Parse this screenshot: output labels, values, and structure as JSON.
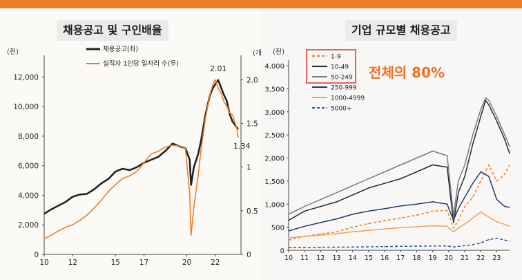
{
  "chart_data": [
    {
      "type": "line",
      "title": "채용공고 및 구인배율",
      "y_unit_left": "(천)",
      "y_unit_right": "(개)",
      "ylim_left": [
        0,
        13000
      ],
      "ylim_right": [
        0,
        2.2
      ],
      "x_ticks": [
        "10",
        "12",
        "15",
        "17",
        "20",
        "22"
      ],
      "y_ticks_left": [
        "0",
        "2,000",
        "4,000",
        "6,000",
        "8,000",
        "10,000",
        "12,000"
      ],
      "y_ticks_right": [
        "0",
        "0.5",
        "1",
        "1.5",
        "2.0"
      ],
      "legend_position": "top-left",
      "series": [
        {
          "name": "채용공고(좌)",
          "axis": "left",
          "color": "#222222",
          "x": [
            2010.0,
            2010.5,
            2011.0,
            2011.5,
            2012.0,
            2012.5,
            2013.0,
            2013.5,
            2014.0,
            2014.5,
            2015.0,
            2015.5,
            2016.0,
            2016.5,
            2017.0,
            2017.5,
            2018.0,
            2018.5,
            2019.0,
            2019.5,
            2019.9,
            2020.2,
            2020.3,
            2020.5,
            2020.8,
            2021.0,
            2021.3,
            2021.6,
            2021.8,
            2022.0,
            2022.2,
            2022.4,
            2022.6,
            2022.8,
            2023.0,
            2023.2,
            2023.5,
            2023.6
          ],
          "values": [
            2750,
            3050,
            3300,
            3550,
            3900,
            4050,
            4100,
            4400,
            4800,
            5100,
            5600,
            5800,
            5700,
            5900,
            6200,
            6400,
            6600,
            7000,
            7500,
            7300,
            7200,
            6400,
            4700,
            5900,
            6800,
            7700,
            9400,
            10700,
            11200,
            11500,
            11800,
            11300,
            10800,
            10400,
            9500,
            9000,
            8600,
            8500
          ]
        },
        {
          "name": "실직자 1인당 일자리 수(우)",
          "axis": "right",
          "color": "#f07d23",
          "x": [
            2010.0,
            2010.5,
            2011.0,
            2011.5,
            2012.0,
            2012.5,
            2013.0,
            2013.5,
            2014.0,
            2014.5,
            2015.0,
            2015.5,
            2016.0,
            2016.5,
            2017.0,
            2017.5,
            2018.0,
            2018.5,
            2019.0,
            2019.5,
            2019.9,
            2020.2,
            2020.3,
            2020.5,
            2020.8,
            2021.0,
            2021.3,
            2021.6,
            2021.8,
            2022.0,
            2022.2,
            2022.4,
            2022.6,
            2022.8,
            2023.0,
            2023.2,
            2023.5,
            2023.6
          ],
          "values": [
            0.18,
            0.22,
            0.27,
            0.31,
            0.34,
            0.39,
            0.45,
            0.53,
            0.62,
            0.72,
            0.8,
            0.87,
            0.9,
            0.95,
            1.05,
            1.15,
            1.18,
            1.23,
            1.25,
            1.24,
            1.22,
            0.7,
            0.22,
            0.55,
            0.9,
            1.2,
            1.55,
            1.82,
            1.93,
            2.0,
            1.9,
            1.85,
            1.75,
            1.7,
            1.62,
            1.6,
            1.45,
            1.34
          ]
        }
      ],
      "annotations": [
        "2.01",
        "1.34"
      ]
    },
    {
      "type": "line",
      "title": "기업 규모별 채용공고",
      "y_unit": "(천)",
      "ylim": [
        0,
        4000
      ],
      "x_ticks": [
        "10",
        "11",
        "12",
        "13",
        "14",
        "15",
        "16",
        "17",
        "18",
        "19",
        "20",
        "21",
        "22",
        "23"
      ],
      "y_ticks": [
        "0",
        "500",
        "1,000",
        "1,500",
        "2,000",
        "2,500",
        "3,000",
        "3,500",
        "4,000"
      ],
      "legend_position": "top-left",
      "series": [
        {
          "name": "1-9",
          "color": "#f07d23",
          "dash": "dashed",
          "x": [
            2010.0,
            2011.0,
            2012.0,
            2013.0,
            2014.0,
            2015.0,
            2016.0,
            2017.0,
            2018.0,
            2019.0,
            2019.9,
            2020.3,
            2020.6,
            2021.0,
            2021.5,
            2022.0,
            2022.5,
            2023.0,
            2023.5,
            2023.8
          ],
          "values": [
            220,
            300,
            350,
            400,
            500,
            580,
            640,
            700,
            760,
            850,
            860,
            480,
            640,
            950,
            1150,
            1500,
            1850,
            1500,
            1650,
            1850
          ]
        },
        {
          "name": "10-49",
          "color": "#1e2a3a",
          "dash": "solid",
          "x": [
            2010.0,
            2011.0,
            2012.0,
            2013.0,
            2014.0,
            2015.0,
            2016.0,
            2017.0,
            2018.0,
            2019.0,
            2019.9,
            2020.3,
            2020.6,
            2021.0,
            2021.5,
            2022.0,
            2022.3,
            2022.5,
            2023.0,
            2023.5,
            2023.8
          ],
          "values": [
            650,
            850,
            950,
            1050,
            1200,
            1350,
            1450,
            1550,
            1700,
            1850,
            1800,
            600,
            1250,
            1600,
            2300,
            2900,
            3250,
            3150,
            2800,
            2400,
            2100
          ]
        },
        {
          "name": "50-249",
          "color": "#7a7a7a",
          "dash": "solid",
          "x": [
            2010.0,
            2011.0,
            2012.0,
            2013.0,
            2014.0,
            2015.0,
            2016.0,
            2017.0,
            2018.0,
            2019.0,
            2019.9,
            2020.3,
            2020.6,
            2021.0,
            2021.5,
            2022.0,
            2022.3,
            2022.5,
            2023.0,
            2023.5,
            2023.8
          ],
          "values": [
            780,
            950,
            1100,
            1250,
            1400,
            1550,
            1700,
            1850,
            2000,
            2150,
            2050,
            750,
            1500,
            1850,
            2500,
            3050,
            3300,
            3250,
            2900,
            2500,
            2250
          ]
        },
        {
          "name": "250-999",
          "color": "#1f3a6e",
          "dash": "solid",
          "x": [
            2010.0,
            2011.0,
            2012.0,
            2013.0,
            2014.0,
            2015.0,
            2016.0,
            2017.0,
            2018.0,
            2019.0,
            2019.9,
            2020.3,
            2020.6,
            2021.0,
            2021.5,
            2022.0,
            2022.5,
            2023.0,
            2023.5,
            2023.8
          ],
          "values": [
            420,
            520,
            600,
            680,
            780,
            850,
            900,
            960,
            1000,
            1050,
            1000,
            650,
            900,
            1150,
            1450,
            1700,
            1600,
            1100,
            950,
            930
          ]
        },
        {
          "name": "1000-4999",
          "color": "#f0a050",
          "dash": "solid",
          "x": [
            2010.0,
            2011.0,
            2012.0,
            2013.0,
            2014.0,
            2015.0,
            2016.0,
            2017.0,
            2018.0,
            2019.0,
            2019.9,
            2020.3,
            2020.6,
            2021.0,
            2021.5,
            2022.0,
            2022.5,
            2023.0,
            2023.5,
            2023.8
          ],
          "values": [
            270,
            300,
            330,
            360,
            400,
            430,
            460,
            490,
            510,
            530,
            520,
            400,
            480,
            570,
            700,
            830,
            720,
            620,
            560,
            520
          ]
        },
        {
          "name": "5000+",
          "color": "#2458a8",
          "dash": "dashed",
          "x": [
            2010.0,
            2012.0,
            2014.0,
            2016.0,
            2018.0,
            2019.9,
            2020.3,
            2021.0,
            2021.5,
            2022.0,
            2022.5,
            2023.0,
            2023.5,
            2023.8
          ],
          "values": [
            60,
            65,
            70,
            80,
            90,
            95,
            70,
            100,
            120,
            160,
            230,
            260,
            220,
            200
          ]
        }
      ],
      "callout": {
        "text": "전체의 80%",
        "highlighted_series": [
          "1-9",
          "10-49",
          "50-249"
        ],
        "color": "#f0701f",
        "box_color": "#d9342b"
      }
    }
  ]
}
